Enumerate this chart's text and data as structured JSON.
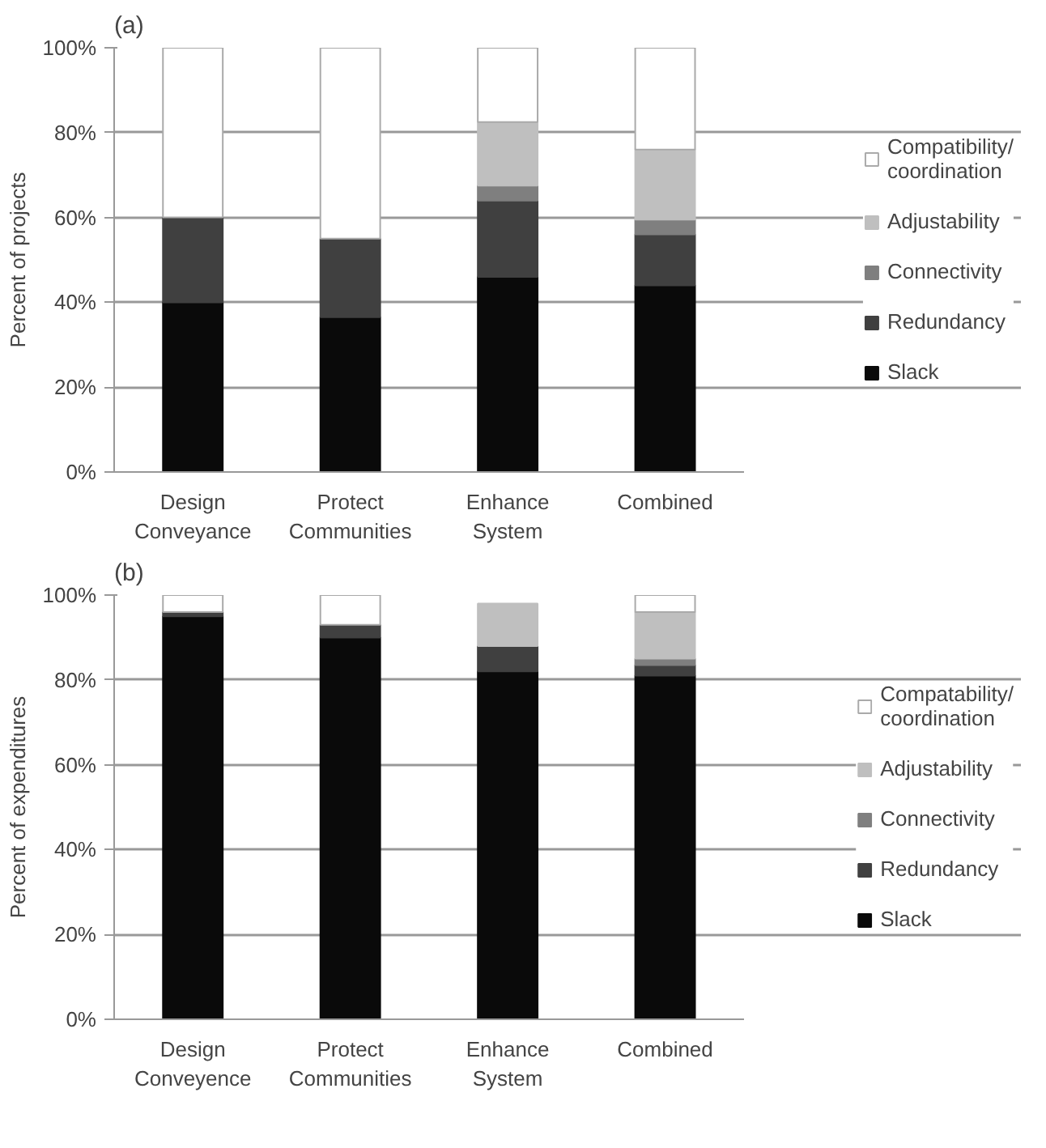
{
  "chart_data": [
    {
      "type": "bar",
      "title": "(a)",
      "ylabel": "Percent of projects",
      "stacked": true,
      "grid": "y",
      "legend": "right",
      "categories": [
        "Design\nConveyance",
        "Protect\nCommunities",
        "Enhance\nSystem",
        "Combined"
      ],
      "ylim": [
        0,
        100
      ],
      "yticks": [
        {
          "value": 0,
          "label": "0%"
        },
        {
          "value": 20,
          "label": "20%"
        },
        {
          "value": 40,
          "label": "40%"
        },
        {
          "value": 60,
          "label": "60%"
        },
        {
          "value": 80,
          "label": "80%"
        },
        {
          "value": 100,
          "label": "100%"
        }
      ],
      "series": [
        {
          "name": "Slack",
          "color": "#0a0a0a",
          "values": [
            40,
            36.5,
            46,
            44
          ]
        },
        {
          "name": "Redundancy",
          "color": "#404040",
          "values": [
            20,
            18.5,
            18,
            12
          ]
        },
        {
          "name": "Connectivity",
          "color": "#7f7f7f",
          "values": [
            0,
            0,
            3.5,
            3.5
          ]
        },
        {
          "name": "Adjustability",
          "color": "#bfbfbf",
          "values": [
            0,
            0,
            15,
            16.5
          ]
        },
        {
          "name": "Compatibility/\ncoordination",
          "color": "#ffffff",
          "values": [
            40,
            45,
            17.5,
            24
          ]
        }
      ]
    },
    {
      "type": "bar",
      "title": "(b)",
      "ylabel": "Percent of expenditures",
      "stacked": true,
      "grid": "y",
      "legend": "right",
      "categories": [
        "Design\nConveyence",
        "Protect\nCommunities",
        "Enhance\nSystem",
        "Combined"
      ],
      "ylim": [
        0,
        100
      ],
      "yticks": [
        {
          "value": 0,
          "label": "0%"
        },
        {
          "value": 20,
          "label": "20%"
        },
        {
          "value": 40,
          "label": "40%"
        },
        {
          "value": 60,
          "label": "60%"
        },
        {
          "value": 80,
          "label": "80%"
        },
        {
          "value": 100,
          "label": "100%"
        }
      ],
      "series": [
        {
          "name": "Slack",
          "color": "#0a0a0a",
          "values": [
            95,
            90,
            82,
            81
          ]
        },
        {
          "name": "Redundancy",
          "color": "#404040",
          "values": [
            1,
            3,
            6,
            2.5
          ]
        },
        {
          "name": "Connectivity",
          "color": "#7f7f7f",
          "values": [
            0,
            0,
            0,
            1.5
          ]
        },
        {
          "name": "Adjustability",
          "color": "#bfbfbf",
          "values": [
            0,
            0,
            10,
            11
          ]
        },
        {
          "name": "Compatability/\ncoordination",
          "color": "#ffffff",
          "values": [
            4,
            7,
            0,
            4
          ]
        }
      ]
    }
  ]
}
